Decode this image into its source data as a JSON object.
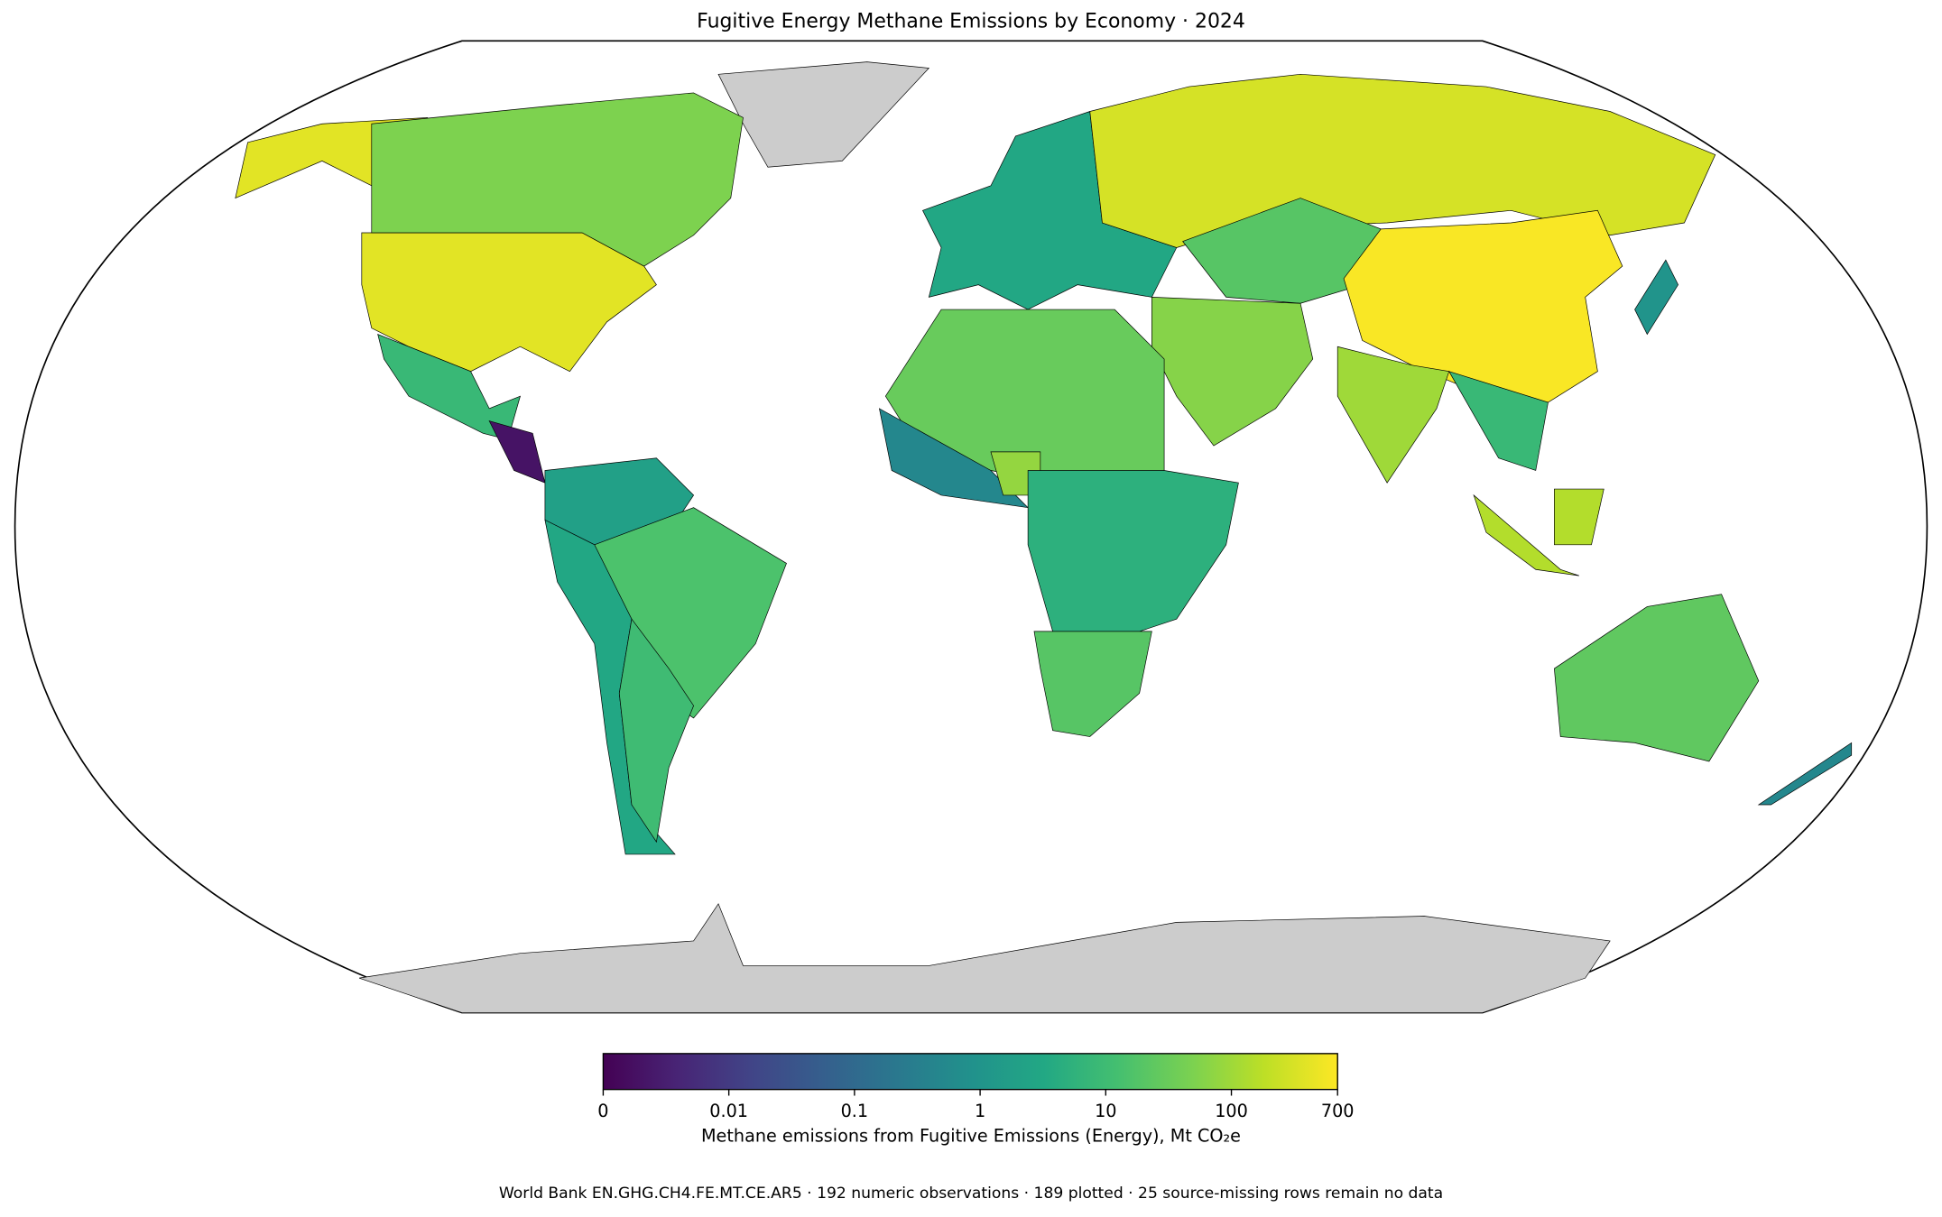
{
  "chart_data": {
    "type": "choropleth",
    "title": "Fugitive Energy Methane Emissions by Economy · 2024",
    "values": [
      400,
      50,
      8,
      0.003,
      2,
      15,
      3,
      10,
      3,
      300,
      20,
      650,
      100,
      60,
      30,
      0.5,
      80,
      5,
      20,
      150,
      25,
      1,
      8,
      0.5
    ],
    "clim": [
      0,
      700
    ],
    "colorbar_ticks": [
      0,
      0.01,
      0.1,
      1,
      10,
      100,
      700
    ],
    "colorbar_label": "Methane emissions from Fugitive Emissions (Energy), Mt CO₂e",
    "colormap": [
      "#440154",
      "#482475",
      "#414487",
      "#355f8d",
      "#2a788e",
      "#21918c",
      "#22a884",
      "#44bf70",
      "#7ad151",
      "#bddf26",
      "#fde725"
    ],
    "no_data_color": "#cccccc",
    "footnote": "World Bank EN.GHG.CH4.FE.MT.CE.AR5 · 192 numeric observations · 189 plotted · 25 source-missing rows remain no data"
  }
}
